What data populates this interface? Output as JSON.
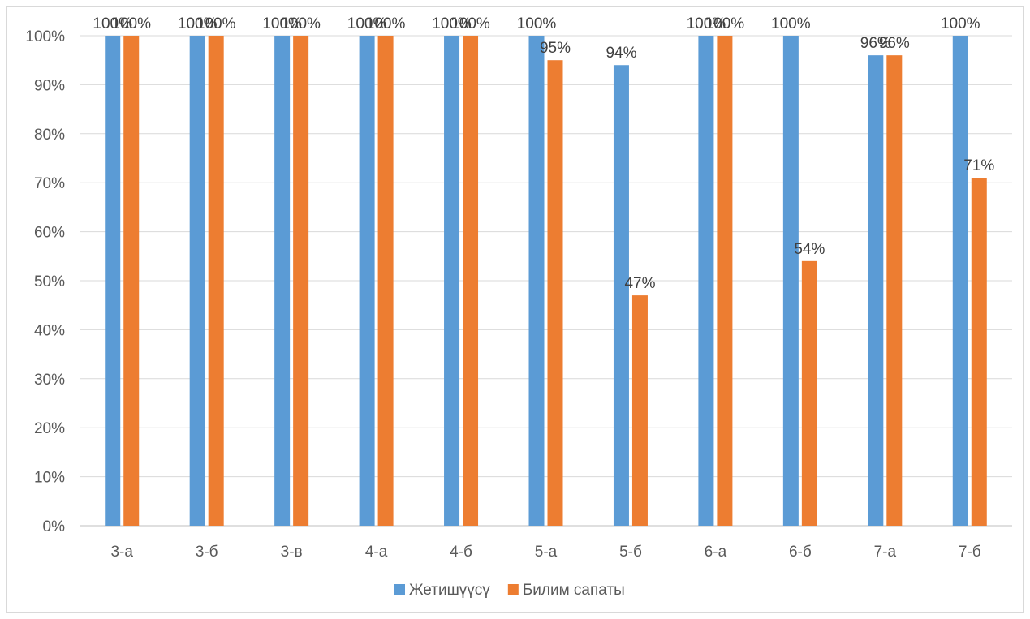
{
  "chart_data": {
    "type": "bar",
    "categories": [
      "3-а",
      "3-б",
      "3-в",
      "4-а",
      "4-б",
      "5-а",
      "5-б",
      "6-а",
      "6-б",
      "7-а",
      "7-б"
    ],
    "series": [
      {
        "name": "Жетишүүсү",
        "color": "#5B9BD5",
        "values": [
          100,
          100,
          100,
          100,
          100,
          100,
          94,
          100,
          100,
          96,
          100
        ],
        "labels": [
          "100%",
          "100%",
          "100%",
          "100%",
          "100%",
          "100%",
          "94%",
          "100%",
          "100%",
          "96%",
          "100%"
        ]
      },
      {
        "name": "Билим сапаты",
        "color": "#ED7D31",
        "values": [
          100,
          100,
          100,
          100,
          100,
          95,
          47,
          100,
          54,
          96,
          71
        ],
        "labels": [
          "100%",
          "100%",
          "100%",
          "100%",
          "100%",
          "95%",
          "47%",
          "100%",
          "54%",
          "96%",
          "71%"
        ]
      }
    ],
    "yticks": [
      "0%",
      "10%",
      "20%",
      "30%",
      "40%",
      "50%",
      "60%",
      "70%",
      "80%",
      "90%",
      "100%"
    ],
    "ylim": [
      0,
      100
    ],
    "grid": true,
    "legend": "bottom"
  }
}
